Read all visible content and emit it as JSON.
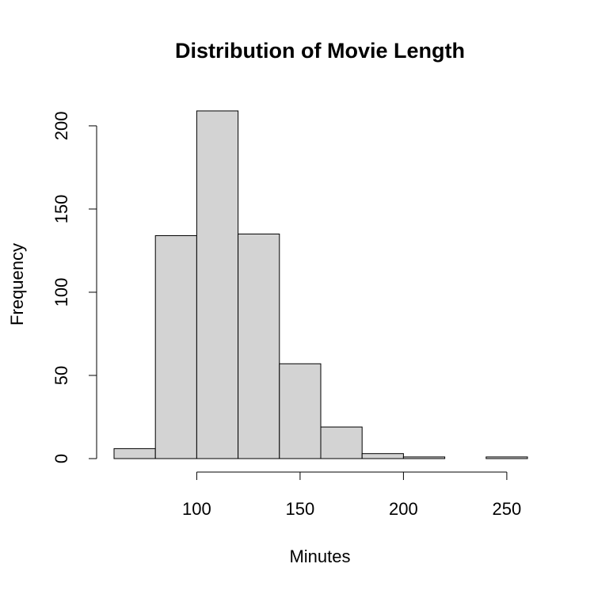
{
  "chart_data": {
    "type": "bar",
    "subtype": "histogram",
    "title": "Distribution of Movie Length",
    "xlabel": "Minutes",
    "ylabel": "Frequency",
    "bin_width": 20,
    "bins": [
      {
        "start": 60,
        "end": 80,
        "count": 6
      },
      {
        "start": 80,
        "end": 100,
        "count": 134
      },
      {
        "start": 100,
        "end": 120,
        "count": 209
      },
      {
        "start": 120,
        "end": 140,
        "count": 135
      },
      {
        "start": 140,
        "end": 160,
        "count": 57
      },
      {
        "start": 160,
        "end": 180,
        "count": 19
      },
      {
        "start": 180,
        "end": 200,
        "count": 3
      },
      {
        "start": 200,
        "end": 220,
        "count": 1
      },
      {
        "start": 220,
        "end": 240,
        "count": 0
      },
      {
        "start": 240,
        "end": 260,
        "count": 1
      }
    ],
    "xlim": [
      60,
      260
    ],
    "ylim": [
      0,
      209
    ],
    "x_ticks": [
      100,
      150,
      200,
      250
    ],
    "y_ticks": [
      0,
      50,
      100,
      150,
      200
    ],
    "bar_fill": "#d3d3d3",
    "bar_stroke": "#000000",
    "grid": false,
    "legend": "none"
  }
}
